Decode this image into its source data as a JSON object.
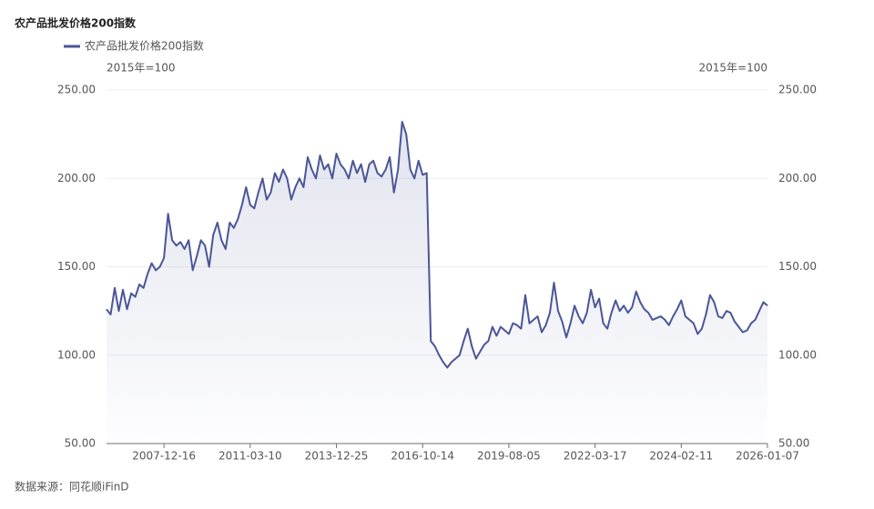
{
  "chart_data": {
    "type": "line",
    "title": "农产品批发价格200指数",
    "y_unit": "2015年=100",
    "y2_unit": "2015年=100",
    "source": "数据来源：同花顺iFinD",
    "categories": [
      null,
      null,
      null,
      null,
      null,
      null,
      null,
      null,
      null,
      null,
      null,
      null,
      null,
      null,
      "2007-12-16",
      null,
      null,
      null,
      null,
      null,
      null,
      null,
      null,
      null,
      null,
      null,
      null,
      null,
      null,
      null,
      null,
      null,
      null,
      null,
      null,
      "2011-03-10",
      null,
      null,
      null,
      null,
      null,
      null,
      null,
      null,
      null,
      null,
      null,
      null,
      null,
      null,
      null,
      null,
      null,
      null,
      null,
      null,
      "2013-12-25",
      null,
      null,
      null,
      null,
      null,
      null,
      null,
      null,
      null,
      null,
      null,
      null,
      null,
      null,
      null,
      null,
      null,
      null,
      null,
      null,
      "2016-10-14",
      null,
      null,
      null,
      null,
      null,
      null,
      null,
      null,
      null,
      null,
      null,
      null,
      null,
      null,
      null,
      null,
      null,
      null,
      null,
      null,
      "2019-08-05",
      null,
      null,
      null,
      null,
      null,
      null,
      null,
      null,
      null,
      null,
      null,
      null,
      null,
      null,
      null,
      null,
      null,
      null,
      null,
      null,
      "2022-03-17",
      null,
      null,
      null,
      null,
      null,
      null,
      null,
      null,
      null,
      null,
      null,
      null,
      null,
      null,
      null,
      null,
      null,
      null,
      null,
      null,
      "2024-02-11",
      null,
      null,
      null,
      null,
      null,
      null,
      null,
      null,
      null,
      null,
      null,
      null,
      null,
      null,
      null,
      null,
      null,
      null,
      null,
      null,
      "2026-01-07"
    ],
    "series": [
      {
        "name": "农产品批发价格200指数",
        "color": "#4a5697",
        "values": [
          126,
          123,
          138,
          125,
          137,
          126,
          135,
          133,
          140,
          138,
          146,
          152,
          148,
          150,
          155,
          180,
          165,
          162,
          164,
          160,
          165,
          148,
          156,
          165,
          162,
          150,
          168,
          175,
          165,
          160,
          175,
          172,
          177,
          185,
          195,
          185,
          183,
          192,
          200,
          188,
          192,
          203,
          198,
          205,
          200,
          188,
          195,
          200,
          195,
          212,
          205,
          200,
          213,
          205,
          208,
          200,
          214,
          208,
          205,
          200,
          210,
          203,
          208,
          198,
          208,
          210,
          203,
          201,
          205,
          212,
          192,
          205,
          232,
          225,
          205,
          200,
          210,
          202,
          203,
          108,
          105,
          100,
          96,
          93,
          96,
          98,
          100,
          108,
          115,
          105,
          98,
          102,
          106,
          108,
          116,
          111,
          116,
          114,
          112,
          118,
          117,
          115,
          134,
          118,
          120,
          122,
          113,
          117,
          124,
          141,
          125,
          119,
          110,
          118,
          128,
          122,
          118,
          124,
          137,
          127,
          132,
          118,
          115,
          124,
          131,
          125,
          128,
          124,
          127,
          136,
          130,
          126,
          124,
          120,
          121,
          122,
          120,
          117,
          122,
          126,
          131,
          122,
          120,
          118,
          112,
          115,
          123,
          134,
          130,
          122,
          121,
          125,
          124,
          119,
          116,
          113,
          114,
          118,
          120,
          125,
          130,
          128
        ]
      }
    ],
    "ylim": [
      50,
      250
    ],
    "yticks": [
      {
        "value": 50,
        "label": "50.00"
      },
      {
        "value": 100,
        "label": "100.00"
      },
      {
        "value": 150,
        "label": "150.00"
      },
      {
        "value": 200,
        "label": "200.00"
      },
      {
        "value": 250,
        "label": "250.00"
      }
    ],
    "y2lim": [
      50,
      250
    ],
    "y2ticks": [
      {
        "value": 50,
        "label": "50.00"
      },
      {
        "value": 100,
        "label": "100.00"
      },
      {
        "value": 150,
        "label": "150.00"
      },
      {
        "value": 200,
        "label": "200.00"
      },
      {
        "value": 250,
        "label": "250.00"
      }
    ],
    "grid": true,
    "area_fill": true
  }
}
